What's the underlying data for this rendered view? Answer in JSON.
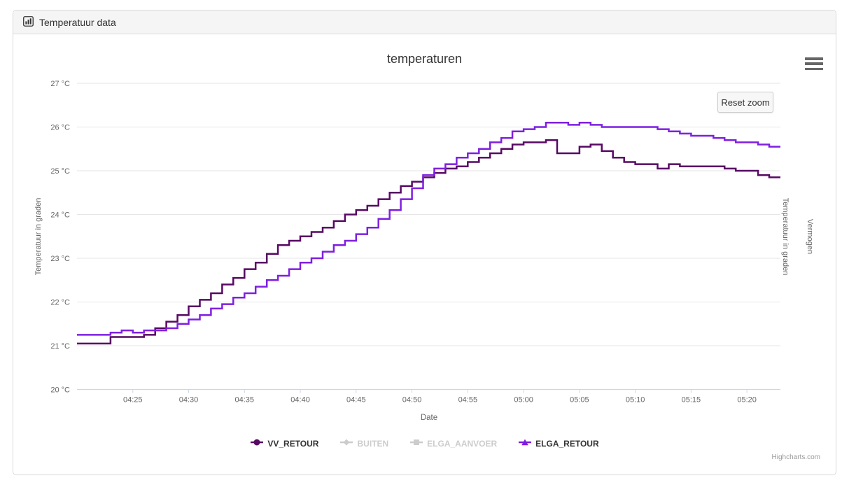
{
  "panel": {
    "title": "Temperatuur data"
  },
  "chart": {
    "title": "temperaturen",
    "xlabel": "Date",
    "ylabel_left": "Temperatuur in graden",
    "ylabel_right": "Temperatuur in graden",
    "ylabel_far_right": "Vermogen",
    "reset_zoom_label": "Reset zoom",
    "credit": "Highcharts.com"
  },
  "colors": {
    "grid": "#e6e6e6",
    "axis_line": "#ccd6eb",
    "tick_label": "#666666",
    "legend_disabled": "#cccccc",
    "header_bg": "#f5f5f5"
  },
  "chart_data": {
    "type": "line",
    "step": true,
    "title": "temperaturen",
    "xlabel": "Date",
    "ylabel": "Temperatuur in graden",
    "ylabel_right": "Temperatuur in graden",
    "ylabel_far_right": "Vermogen",
    "ylim": [
      20,
      27
    ],
    "ytick_values": [
      20,
      21,
      22,
      23,
      24,
      25,
      26,
      27
    ],
    "yticks": [
      "20 °C",
      "21 °C",
      "22 °C",
      "23 °C",
      "24 °C",
      "25 °C",
      "26 °C",
      "27 °C"
    ],
    "xticks": [
      "04:25",
      "04:30",
      "04:35",
      "04:40",
      "04:45",
      "04:50",
      "04:55",
      "05:00",
      "05:05",
      "05:10",
      "05:15",
      "05:20"
    ],
    "x_range": [
      "04:20",
      "05:23"
    ],
    "grid": "horizontal",
    "legend_position": "bottom",
    "x": [
      "04:21",
      "04:22",
      "04:23",
      "04:24",
      "04:25",
      "04:26",
      "04:27",
      "04:28",
      "04:29",
      "04:30",
      "04:31",
      "04:32",
      "04:33",
      "04:34",
      "04:35",
      "04:36",
      "04:37",
      "04:38",
      "04:39",
      "04:40",
      "04:41",
      "04:42",
      "04:43",
      "04:44",
      "04:45",
      "04:46",
      "04:47",
      "04:48",
      "04:49",
      "04:50",
      "04:51",
      "04:52",
      "04:53",
      "04:54",
      "04:55",
      "04:56",
      "04:57",
      "04:58",
      "04:59",
      "05:00",
      "05:01",
      "05:02",
      "05:03",
      "05:04",
      "05:05",
      "05:06",
      "05:07",
      "05:08",
      "05:09",
      "05:10",
      "05:11",
      "05:12",
      "05:13",
      "05:14",
      "05:15",
      "05:16",
      "05:17",
      "05:18",
      "05:19",
      "05:20",
      "05:21",
      "05:22"
    ],
    "series": [
      {
        "name": "VV_RETOUR",
        "color": "#570963",
        "marker": "circle",
        "enabled": true,
        "values": [
          21.05,
          21.05,
          21.2,
          21.2,
          21.2,
          21.25,
          21.4,
          21.55,
          21.7,
          21.9,
          22.05,
          22.2,
          22.4,
          22.55,
          22.75,
          22.9,
          23.1,
          23.3,
          23.4,
          23.5,
          23.6,
          23.7,
          23.85,
          24.0,
          24.1,
          24.2,
          24.35,
          24.5,
          24.65,
          24.75,
          24.85,
          24.95,
          25.05,
          25.1,
          25.2,
          25.3,
          25.4,
          25.5,
          25.6,
          25.65,
          25.65,
          25.7,
          25.4,
          25.4,
          25.55,
          25.6,
          25.45,
          25.3,
          25.2,
          25.15,
          25.15,
          25.05,
          25.15,
          25.1,
          25.1,
          25.1,
          25.1,
          25.05,
          25.0,
          25.0,
          24.9,
          24.85
        ]
      },
      {
        "name": "BUITEN",
        "color": "#cccccc",
        "marker": "diamond",
        "enabled": false,
        "values": []
      },
      {
        "name": "ELGA_AANVOER",
        "color": "#cccccc",
        "marker": "square",
        "enabled": false,
        "values": []
      },
      {
        "name": "ELGA_RETOUR",
        "color": "#7f1fe0",
        "marker": "triangle",
        "enabled": true,
        "values": [
          21.25,
          21.25,
          21.3,
          21.35,
          21.3,
          21.35,
          21.35,
          21.4,
          21.5,
          21.6,
          21.7,
          21.85,
          21.95,
          22.1,
          22.2,
          22.35,
          22.5,
          22.6,
          22.75,
          22.9,
          23.0,
          23.15,
          23.3,
          23.4,
          23.55,
          23.7,
          23.9,
          24.1,
          24.35,
          24.6,
          24.9,
          25.05,
          25.15,
          25.3,
          25.4,
          25.5,
          25.65,
          25.75,
          25.9,
          25.95,
          26.0,
          26.1,
          26.1,
          26.05,
          26.1,
          26.05,
          26.0,
          26.0,
          26.0,
          26.0,
          26.0,
          25.95,
          25.9,
          25.85,
          25.8,
          25.8,
          25.75,
          25.7,
          25.65,
          25.65,
          25.6,
          25.55
        ]
      }
    ]
  }
}
